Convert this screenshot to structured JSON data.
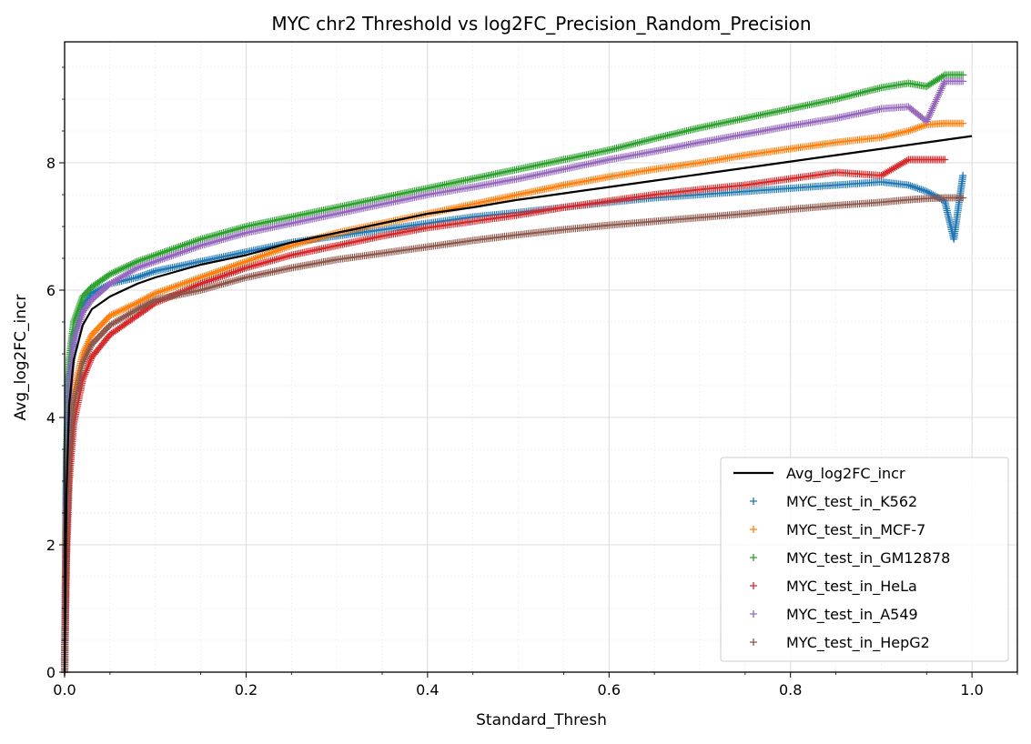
{
  "chart_data": {
    "type": "scatter",
    "title": "MYC chr2 Threshold vs log2FC_Precision_Random_Precision",
    "xlabel": "Standard_Thresh",
    "ylabel": "Avg_log2FC_incr",
    "xlim": [
      0.0,
      1.05
    ],
    "ylim": [
      0,
      9.9
    ],
    "xticks": [
      "0.0",
      "0.2",
      "0.4",
      "0.6",
      "0.8",
      "1.0"
    ],
    "yticks": [
      "0",
      "2",
      "4",
      "6",
      "8"
    ],
    "grid": true,
    "legend_position": "lower-right",
    "line_series": {
      "name": "Avg_log2FC_incr",
      "color": "#000000",
      "x": [
        0.0,
        0.002,
        0.005,
        0.01,
        0.02,
        0.03,
        0.05,
        0.08,
        0.1,
        0.15,
        0.2,
        0.25,
        0.3,
        0.35,
        0.4,
        0.45,
        0.5,
        0.55,
        0.6,
        0.65,
        0.7,
        0.75,
        0.8,
        0.85,
        0.9,
        0.95,
        0.98,
        1.0
      ],
      "y": [
        0.0,
        2.8,
        4.2,
        4.9,
        5.45,
        5.7,
        5.9,
        6.1,
        6.2,
        6.4,
        6.55,
        6.75,
        6.9,
        7.05,
        7.2,
        7.3,
        7.42,
        7.52,
        7.62,
        7.72,
        7.82,
        7.92,
        8.02,
        8.12,
        8.22,
        8.32,
        8.38,
        8.42
      ]
    },
    "series": [
      {
        "name": "MYC_test_in_K562",
        "color": "#1f77b4",
        "x": [
          0.0,
          0.002,
          0.005,
          0.01,
          0.02,
          0.03,
          0.05,
          0.08,
          0.1,
          0.15,
          0.2,
          0.25,
          0.3,
          0.35,
          0.4,
          0.45,
          0.5,
          0.55,
          0.6,
          0.65,
          0.7,
          0.75,
          0.8,
          0.85,
          0.9,
          0.93,
          0.95,
          0.97,
          0.98,
          0.99
        ],
        "y": [
          0.0,
          3.2,
          4.6,
          5.3,
          5.75,
          5.95,
          6.1,
          6.2,
          6.3,
          6.45,
          6.6,
          6.75,
          6.85,
          6.95,
          7.05,
          7.15,
          7.22,
          7.3,
          7.38,
          7.45,
          7.5,
          7.55,
          7.6,
          7.65,
          7.7,
          7.65,
          7.55,
          7.4,
          6.8,
          7.8
        ]
      },
      {
        "name": "MYC_test_in_MCF-7",
        "color": "#ff7f0e",
        "x": [
          0.0,
          0.002,
          0.005,
          0.01,
          0.02,
          0.03,
          0.05,
          0.08,
          0.1,
          0.15,
          0.2,
          0.25,
          0.3,
          0.35,
          0.4,
          0.45,
          0.5,
          0.55,
          0.6,
          0.65,
          0.7,
          0.75,
          0.8,
          0.85,
          0.9,
          0.93,
          0.95,
          0.97,
          0.99
        ],
        "y": [
          0.0,
          2.2,
          3.6,
          4.4,
          5.0,
          5.3,
          5.6,
          5.8,
          5.95,
          6.2,
          6.45,
          6.7,
          6.9,
          7.05,
          7.2,
          7.35,
          7.5,
          7.65,
          7.78,
          7.9,
          8.0,
          8.12,
          8.22,
          8.32,
          8.4,
          8.5,
          8.6,
          8.62,
          8.62
        ]
      },
      {
        "name": "MYC_test_in_GM12878",
        "color": "#2ca02c",
        "x": [
          0.0,
          0.002,
          0.005,
          0.01,
          0.02,
          0.03,
          0.05,
          0.08,
          0.1,
          0.15,
          0.2,
          0.25,
          0.3,
          0.35,
          0.4,
          0.45,
          0.5,
          0.55,
          0.6,
          0.65,
          0.7,
          0.75,
          0.8,
          0.85,
          0.9,
          0.93,
          0.95,
          0.97,
          0.99
        ],
        "y": [
          0.0,
          3.4,
          4.9,
          5.5,
          5.9,
          6.05,
          6.25,
          6.45,
          6.55,
          6.8,
          7.0,
          7.15,
          7.3,
          7.45,
          7.6,
          7.75,
          7.9,
          8.05,
          8.2,
          8.38,
          8.55,
          8.7,
          8.85,
          9.0,
          9.18,
          9.25,
          9.2,
          9.38,
          9.38
        ]
      },
      {
        "name": "MYC_test_in_HeLa",
        "color": "#d62728",
        "x": [
          0.0,
          0.002,
          0.005,
          0.01,
          0.02,
          0.03,
          0.05,
          0.08,
          0.1,
          0.15,
          0.2,
          0.25,
          0.3,
          0.35,
          0.4,
          0.45,
          0.5,
          0.55,
          0.6,
          0.65,
          0.7,
          0.75,
          0.8,
          0.85,
          0.9,
          0.93,
          0.95,
          0.97
        ],
        "y": [
          0.0,
          1.8,
          3.0,
          3.9,
          4.6,
          4.95,
          5.3,
          5.6,
          5.8,
          6.1,
          6.35,
          6.55,
          6.7,
          6.85,
          6.98,
          7.08,
          7.18,
          7.3,
          7.4,
          7.5,
          7.58,
          7.65,
          7.75,
          7.85,
          7.8,
          8.05,
          8.05,
          8.05
        ]
      },
      {
        "name": "MYC_test_in_A549",
        "color": "#9467bd",
        "x": [
          0.0,
          0.002,
          0.005,
          0.01,
          0.02,
          0.03,
          0.05,
          0.08,
          0.1,
          0.15,
          0.2,
          0.25,
          0.3,
          0.35,
          0.4,
          0.45,
          0.5,
          0.55,
          0.6,
          0.65,
          0.7,
          0.75,
          0.8,
          0.85,
          0.9,
          0.93,
          0.95,
          0.97,
          0.99
        ],
        "y": [
          0.0,
          3.0,
          4.5,
          5.2,
          5.65,
          5.85,
          6.1,
          6.35,
          6.45,
          6.7,
          6.9,
          7.05,
          7.2,
          7.35,
          7.5,
          7.62,
          7.75,
          7.9,
          8.05,
          8.18,
          8.32,
          8.45,
          8.58,
          8.7,
          8.85,
          8.88,
          8.65,
          9.28,
          9.28
        ]
      },
      {
        "name": "MYC_test_in_HepG2",
        "color": "#8c564b",
        "x": [
          0.0,
          0.002,
          0.005,
          0.01,
          0.02,
          0.03,
          0.05,
          0.08,
          0.1,
          0.15,
          0.2,
          0.25,
          0.3,
          0.35,
          0.4,
          0.45,
          0.5,
          0.55,
          0.6,
          0.65,
          0.7,
          0.75,
          0.8,
          0.85,
          0.9,
          0.93,
          0.95,
          0.97,
          0.99
        ],
        "y": [
          0.0,
          2.0,
          3.3,
          4.2,
          4.85,
          5.15,
          5.45,
          5.7,
          5.85,
          6.0,
          6.2,
          6.35,
          6.48,
          6.58,
          6.68,
          6.78,
          6.87,
          6.95,
          7.02,
          7.08,
          7.14,
          7.2,
          7.27,
          7.33,
          7.38,
          7.42,
          7.44,
          7.45,
          7.45
        ]
      }
    ]
  }
}
